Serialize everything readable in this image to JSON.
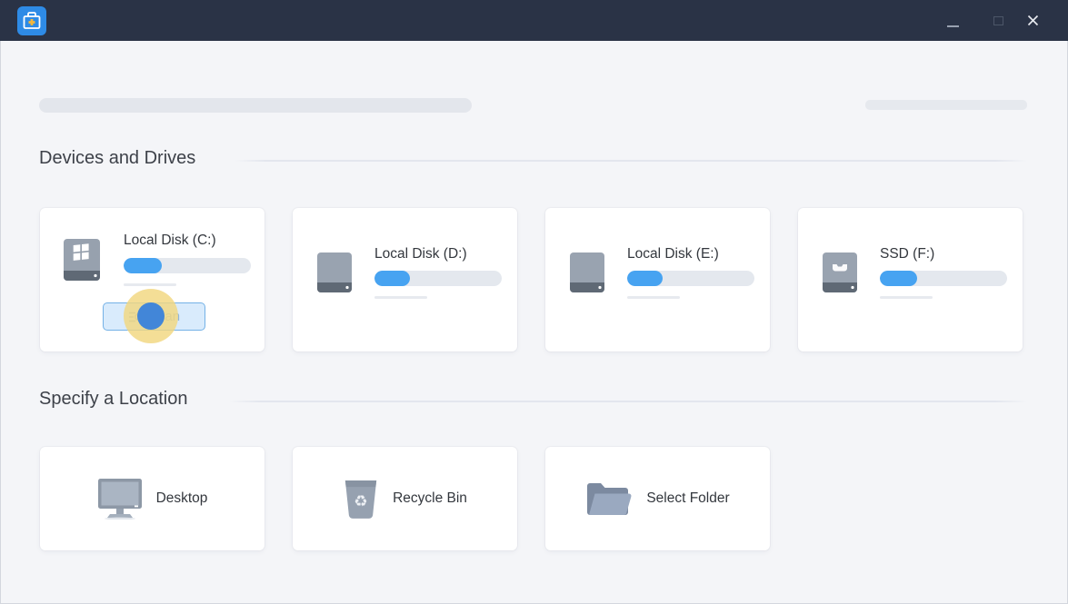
{
  "titlebar": {
    "app_icon": "data-recovery-toolkit",
    "controls": [
      {
        "name": "minimize"
      },
      {
        "name": "maximize"
      },
      {
        "name": "close"
      }
    ]
  },
  "sections": {
    "devices": {
      "title": "Devices and Drives",
      "drives": [
        {
          "name": "Local Disk (C:)",
          "icon": "windows-drive-icon",
          "usage_percent": 30,
          "scan_button": "Scan"
        },
        {
          "name": "Local Disk (D:)",
          "icon": "drive-icon",
          "usage_percent": 28
        },
        {
          "name": "Local Disk (E:)",
          "icon": "drive-icon",
          "usage_percent": 28
        },
        {
          "name": "SSD (F:)",
          "icon": "ssd-drive-icon",
          "usage_percent": 29
        }
      ]
    },
    "locations": {
      "title": "Specify a Location",
      "items": [
        {
          "label": "Desktop",
          "icon": "desktop-monitor-icon"
        },
        {
          "label": "Recycle Bin",
          "icon": "recycle-bin-icon"
        },
        {
          "label": "Select Folder",
          "icon": "open-folder-icon"
        }
      ]
    }
  },
  "overlay": {
    "click_indicator": {
      "target": "scan-button",
      "outer_color": "#f1d77f",
      "inner_color": "#4286d8"
    }
  },
  "colors": {
    "titlebar_bg": "#2a3346",
    "window_bg": "#f4f5f8",
    "card_bg": "#ffffff",
    "accent_blue": "#47a3f1",
    "progress_track": "#e4e8ee",
    "scan_button_bg": "#d9ebfc",
    "scan_button_border": "#74b1e6",
    "scan_button_text": "#8fb5db",
    "app_icon_blue": "#2e8be6",
    "app_icon_plus": "#f3b73c"
  }
}
